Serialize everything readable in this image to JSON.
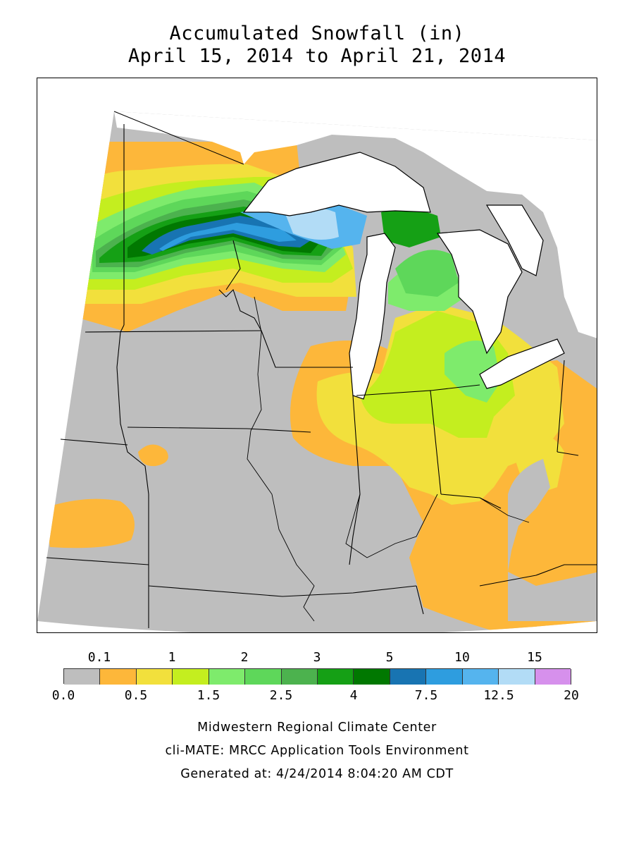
{
  "header": {
    "title_line1": "Accumulated Snowfall (in)",
    "title_line2": "April 15, 2014 to April 21, 2014"
  },
  "legend": {
    "top_labels": [
      "0.1",
      "1",
      "2",
      "3",
      "5",
      "10",
      "15"
    ],
    "bottom_labels": [
      "0.0",
      "0.5",
      "1.5",
      "2.5",
      "4",
      "7.5",
      "12.5",
      "20"
    ],
    "colors": [
      "#bebebe",
      "#fdb73a",
      "#f2e03c",
      "#c4ee1f",
      "#7eeb6c",
      "#5ed75a",
      "#4cb24e",
      "#15a015",
      "#017801",
      "#1874b2",
      "#2e9ddf",
      "#55b4ee",
      "#b2dcf6",
      "#d690ec"
    ]
  },
  "map": {
    "land_color": "#bebebe",
    "water_color": "#ffffff",
    "outside_color": "#ffffff"
  },
  "footer": {
    "line1": "Midwestern Regional Climate Center",
    "line2": "cli-MATE: MRCC Application Tools Environment",
    "line3": "Generated at: 4/24/2014 8:04:20 AM CDT"
  }
}
